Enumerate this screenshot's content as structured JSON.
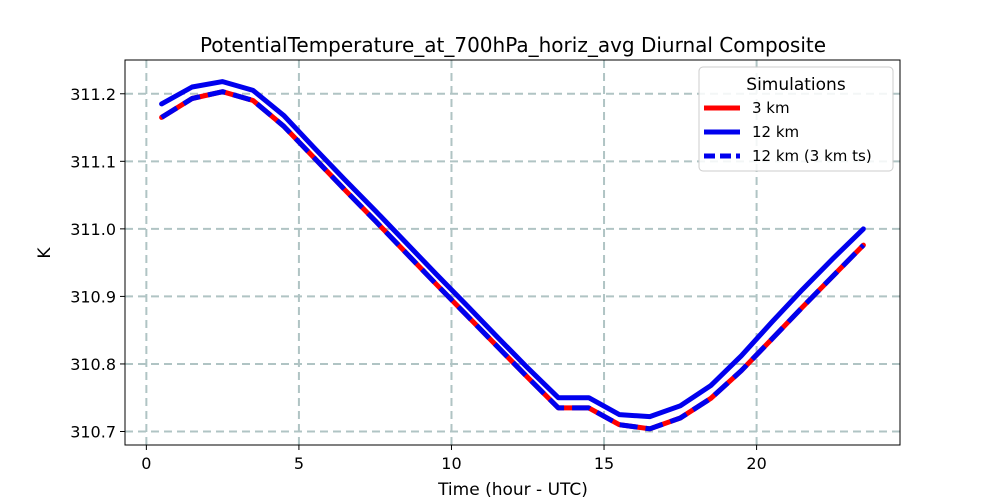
{
  "chart_data": {
    "type": "line",
    "title": "PotentialTemperature_at_700hPa_horiz_avg Diurnal Composite",
    "xlabel": "Time (hour - UTC)",
    "ylabel": "K",
    "xlim": [
      -0.7,
      24.7
    ],
    "ylim": [
      310.68,
      311.25
    ],
    "xticks": [
      0,
      5,
      10,
      15,
      20
    ],
    "yticks": [
      310.7,
      310.8,
      310.9,
      311.0,
      311.1,
      311.2
    ],
    "ytick_labels": [
      "310.7",
      "310.8",
      "310.9",
      "311.0",
      "311.1",
      "311.2"
    ],
    "grid": true,
    "legend": {
      "title": "Simulations",
      "location": "upper-right"
    },
    "x": [
      0.5,
      1.5,
      2.5,
      3.5,
      4.5,
      5.5,
      6.5,
      7.5,
      8.5,
      9.5,
      10.5,
      11.5,
      12.5,
      13.5,
      14.5,
      15.5,
      16.5,
      17.5,
      18.5,
      19.5,
      20.5,
      21.5,
      22.5,
      23.5
    ],
    "series": [
      {
        "name": "3 km",
        "color": "#ff0000",
        "style": "solid",
        "values": [
          311.165,
          311.193,
          311.203,
          311.19,
          311.152,
          311.105,
          311.058,
          311.012,
          310.965,
          310.918,
          310.872,
          310.826,
          310.78,
          310.735,
          310.735,
          310.71,
          310.704,
          310.72,
          310.749,
          310.79,
          310.837,
          310.884,
          310.93,
          310.976
        ]
      },
      {
        "name": "12 km",
        "color": "#0000ee",
        "style": "solid",
        "values": [
          311.185,
          311.21,
          311.218,
          311.205,
          311.168,
          311.12,
          311.073,
          311.027,
          310.98,
          310.933,
          310.887,
          310.84,
          310.794,
          310.75,
          310.75,
          310.725,
          310.722,
          310.738,
          310.768,
          310.812,
          310.862,
          310.91,
          310.956,
          311.0
        ]
      },
      {
        "name": "12 km (3 km ts)",
        "color": "#0000ee",
        "style": "dashed",
        "values": [
          311.165,
          311.193,
          311.203,
          311.19,
          311.152,
          311.105,
          311.058,
          311.012,
          310.965,
          310.918,
          310.872,
          310.826,
          310.78,
          310.735,
          310.735,
          310.71,
          310.704,
          310.72,
          310.749,
          310.79,
          310.837,
          310.884,
          310.93,
          310.976
        ]
      }
    ]
  }
}
